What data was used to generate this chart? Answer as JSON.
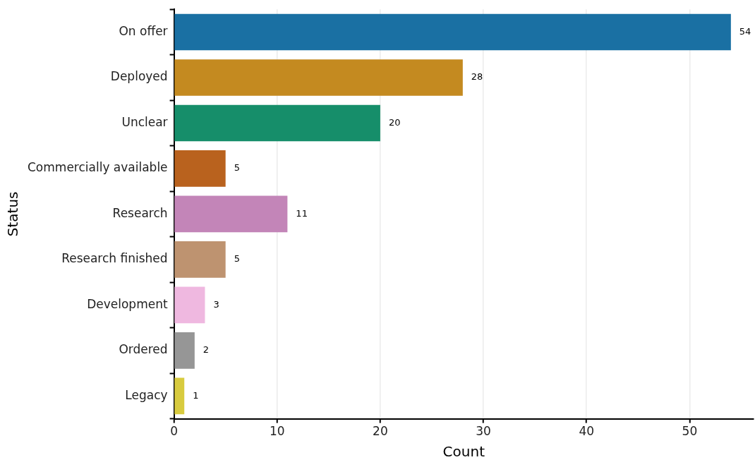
{
  "chart_data": {
    "type": "bar",
    "orientation": "horizontal",
    "xlabel": "Count",
    "ylabel": "Status",
    "categories": [
      "On offer",
      "Deployed",
      "Unclear",
      "Commercially available",
      "Research",
      "Research finished",
      "Development",
      "Ordered",
      "Legacy"
    ],
    "values": [
      54,
      28,
      20,
      5,
      11,
      5,
      3,
      2,
      1
    ],
    "colors": [
      "#1a70a3",
      "#c48a20",
      "#168e6a",
      "#b9621e",
      "#c385b8",
      "#be9370",
      "#efb8e0",
      "#969696",
      "#d8cb3f"
    ],
    "xlim": [
      0,
      56.2
    ],
    "xticks": [
      0,
      10,
      20,
      30,
      40,
      50
    ],
    "grid": "x",
    "data_labels": true,
    "legend": false
  }
}
